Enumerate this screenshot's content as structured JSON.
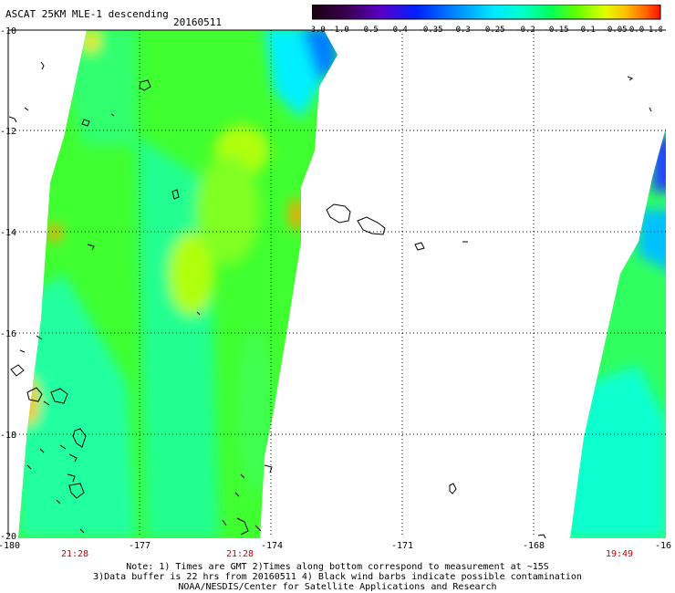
{
  "header": {
    "title": "ASCAT 25KM MLE-1 descending",
    "date": "20160511"
  },
  "colorbar": {
    "tick_labels": [
      "-3.0",
      "-1.0",
      "-0.5",
      "-0.4",
      "-0.35",
      "-0.3",
      "-0.25",
      "-0.2",
      "-0.15",
      "-0.1",
      "-0.05",
      "0.0",
      "1.0"
    ],
    "colors": [
      "#1a0010",
      "#4b0070",
      "#5a00c8",
      "#0020ff",
      "#0090ff",
      "#00d0ff",
      "#00ffff",
      "#00ff90",
      "#40ff00",
      "#c0ff00",
      "#ffff00",
      "#ffa000",
      "#ff2000"
    ]
  },
  "axes": {
    "x_labels": [
      "-180",
      "-177",
      "-174",
      "-171",
      "-168",
      "-16"
    ],
    "y_labels": [
      "-10",
      "-12",
      "-14",
      "-16",
      "-18",
      "-20"
    ]
  },
  "pass_times": [
    "21:28",
    "21:28",
    "19:49"
  ],
  "notes": {
    "line1": "Note: 1) Times are GMT 2)Times along bottom correspond to measurement at ~15S",
    "line2": "3)Data buffer is 22 hrs from 20160511 4) Black wind barbs indicate possible contamination",
    "line3": "NOAA/NESDIS/Center for Satellite Applications and Research"
  },
  "colors": {
    "time_label": "#cc0000",
    "grid": "#000000"
  }
}
